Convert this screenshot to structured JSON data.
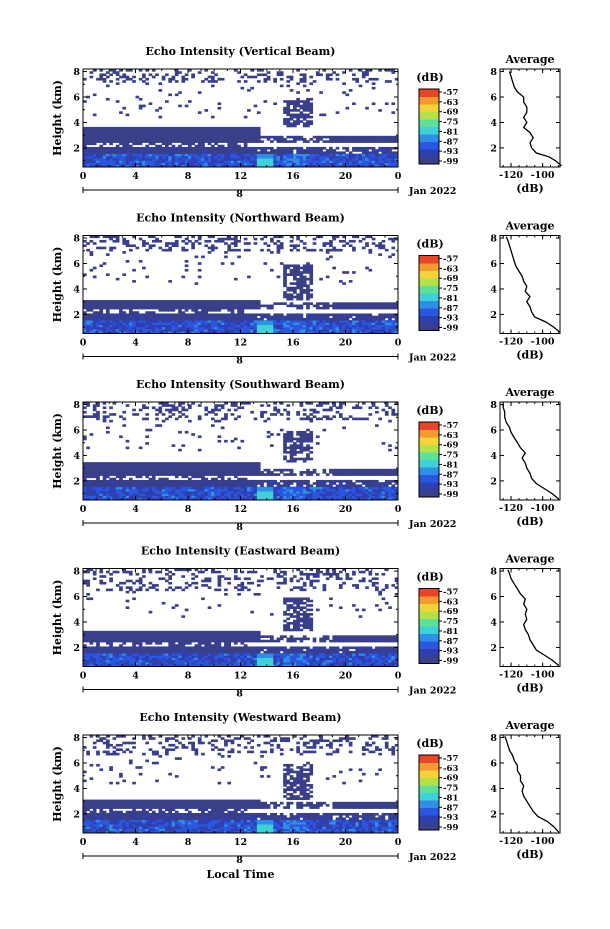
{
  "figure": {
    "xlabel": "Local Time",
    "date_label": "Jan 2022",
    "day_label": "8",
    "colorbar_unit": "(dB)",
    "colorbar_ticks": [
      "-57",
      "-63",
      "-69",
      "-75",
      "-81",
      "-87",
      "-93",
      "-99"
    ],
    "colormap_colors": [
      "#3a3f8a",
      "#2f3fb0",
      "#2a56e0",
      "#2f8fe6",
      "#3fd0d8",
      "#5fe09a",
      "#b4e04a",
      "#f2d33a",
      "#f49a2f",
      "#e8452a"
    ],
    "background_color": "#ffffff"
  },
  "chart_data": [
    {
      "type": "heatmap",
      "title": "Echo Intensity (Vertical Beam)",
      "ylabel": "Height (km)",
      "xlabel": "",
      "x_ticks": [
        "0",
        "4",
        "8",
        "12",
        "16",
        "20",
        "0"
      ],
      "y_ticks": [
        "2",
        "4",
        "6",
        "8"
      ],
      "xlim": [
        0,
        24
      ],
      "ylim": [
        0.5,
        8.2
      ],
      "clim": [
        -99,
        -57
      ],
      "features": {
        "low_echo_top_km": 3.6,
        "upper_echo_km": [
          7.2,
          8.2
        ],
        "strong_echo_time_h": 13.8,
        "storm_time_range_h": [
          15.2,
          17.0
        ]
      },
      "profile": {
        "title": "Average",
        "xlabel": "(dB)",
        "x_ticks": [
          "-120",
          "-100"
        ],
        "y_ticks": [
          "2",
          "4",
          "6",
          "8"
        ],
        "xlim": [
          -127,
          -89
        ],
        "ylim": [
          0.5,
          8.2
        ],
        "points": [
          [
            -88,
            0.6
          ],
          [
            -92,
            1.0
          ],
          [
            -96,
            1.3
          ],
          [
            -104,
            1.6
          ],
          [
            -107,
            2.0
          ],
          [
            -108,
            2.4
          ],
          [
            -106,
            2.8
          ],
          [
            -108,
            3.2
          ],
          [
            -112,
            3.6
          ],
          [
            -110,
            4.0
          ],
          [
            -112,
            4.4
          ],
          [
            -110,
            4.8
          ],
          [
            -110,
            5.2
          ],
          [
            -112,
            5.6
          ],
          [
            -112,
            6.0
          ],
          [
            -116,
            6.4
          ],
          [
            -118,
            6.8
          ],
          [
            -119,
            7.2
          ],
          [
            -120,
            7.6
          ],
          [
            -121,
            8.0
          ]
        ]
      }
    },
    {
      "type": "heatmap",
      "title": "Echo Intensity (Northward Beam)",
      "ylabel": "Height (km)",
      "xlabel": "",
      "x_ticks": [
        "0",
        "4",
        "8",
        "12",
        "16",
        "20",
        "0"
      ],
      "y_ticks": [
        "2",
        "4",
        "6",
        "8"
      ],
      "xlim": [
        0,
        24
      ],
      "ylim": [
        0.5,
        8.2
      ],
      "clim": [
        -99,
        -57
      ],
      "features": {
        "low_echo_top_km": 3.2,
        "upper_echo_km": [
          7.0,
          8.2
        ],
        "strong_echo_time_h": 13.8,
        "storm_time_range_h": [
          15.2,
          17.0
        ]
      },
      "profile": {
        "title": "Average",
        "xlabel": "(dB)",
        "x_ticks": [
          "-120",
          "-100"
        ],
        "y_ticks": [
          "2",
          "4",
          "6",
          "8"
        ],
        "xlim": [
          -127,
          -89
        ],
        "ylim": [
          0.5,
          8.2
        ],
        "points": [
          [
            -89,
            0.6
          ],
          [
            -93,
            1.0
          ],
          [
            -98,
            1.4
          ],
          [
            -105,
            1.8
          ],
          [
            -107,
            2.2
          ],
          [
            -108,
            2.6
          ],
          [
            -110,
            3.0
          ],
          [
            -108,
            3.4
          ],
          [
            -111,
            3.8
          ],
          [
            -110,
            4.2
          ],
          [
            -112,
            4.6
          ],
          [
            -113,
            5.0
          ],
          [
            -115,
            5.4
          ],
          [
            -117,
            5.8
          ],
          [
            -118,
            6.2
          ],
          [
            -119,
            6.6
          ],
          [
            -120,
            7.0
          ],
          [
            -121,
            7.4
          ],
          [
            -122,
            7.8
          ],
          [
            -123,
            8.1
          ]
        ]
      }
    },
    {
      "type": "heatmap",
      "title": "Echo Intensity (Southward Beam)",
      "ylabel": "Height (km)",
      "xlabel": "",
      "x_ticks": [
        "0",
        "4",
        "8",
        "12",
        "16",
        "20",
        "0"
      ],
      "y_ticks": [
        "2",
        "4",
        "6",
        "8"
      ],
      "xlim": [
        0,
        24
      ],
      "ylim": [
        0.5,
        8.2
      ],
      "clim": [
        -99,
        -57
      ],
      "features": {
        "low_echo_top_km": 3.4,
        "upper_echo_km": [
          6.8,
          8.2
        ],
        "strong_echo_time_h": 13.8,
        "storm_time_range_h": [
          15.2,
          17.0
        ]
      },
      "profile": {
        "title": "Average",
        "xlabel": "(dB)",
        "x_ticks": [
          "-120",
          "-100"
        ],
        "y_ticks": [
          "2",
          "4",
          "6",
          "8"
        ],
        "xlim": [
          -127,
          -89
        ],
        "ylim": [
          0.5,
          8.2
        ],
        "points": [
          [
            -90,
            0.6
          ],
          [
            -94,
            1.0
          ],
          [
            -99,
            1.4
          ],
          [
            -104,
            1.8
          ],
          [
            -107,
            2.2
          ],
          [
            -108,
            2.6
          ],
          [
            -110,
            3.0
          ],
          [
            -111,
            3.4
          ],
          [
            -113,
            3.8
          ],
          [
            -111,
            4.2
          ],
          [
            -114,
            4.6
          ],
          [
            -116,
            5.0
          ],
          [
            -118,
            5.4
          ],
          [
            -120,
            5.8
          ],
          [
            -121,
            6.2
          ],
          [
            -123,
            6.6
          ],
          [
            -124,
            7.0
          ],
          [
            -124,
            7.4
          ],
          [
            -125,
            7.8
          ],
          [
            -125,
            8.1
          ]
        ]
      }
    },
    {
      "type": "heatmap",
      "title": "Echo Intensity (Eastward Beam)",
      "ylabel": "Height (km)",
      "xlabel": "",
      "x_ticks": [
        "0",
        "4",
        "8",
        "12",
        "16",
        "20",
        "0"
      ],
      "y_ticks": [
        "2",
        "4",
        "6",
        "8"
      ],
      "xlim": [
        0,
        24
      ],
      "ylim": [
        0.5,
        8.2
      ],
      "clim": [
        -99,
        -57
      ],
      "features": {
        "low_echo_top_km": 3.3,
        "upper_echo_km": [
          6.5,
          8.2
        ],
        "strong_echo_time_h": 13.8,
        "storm_time_range_h": [
          15.2,
          17.0
        ]
      },
      "profile": {
        "title": "Average",
        "xlabel": "(dB)",
        "x_ticks": [
          "-120",
          "-100"
        ],
        "y_ticks": [
          "2",
          "4",
          "6",
          "8"
        ],
        "xlim": [
          -127,
          -89
        ],
        "ylim": [
          0.5,
          8.2
        ],
        "points": [
          [
            -90,
            0.6
          ],
          [
            -94,
            1.0
          ],
          [
            -99,
            1.4
          ],
          [
            -104,
            1.8
          ],
          [
            -106,
            2.2
          ],
          [
            -108,
            2.6
          ],
          [
            -109,
            3.0
          ],
          [
            -111,
            3.4
          ],
          [
            -112,
            3.8
          ],
          [
            -110,
            4.2
          ],
          [
            -111,
            4.6
          ],
          [
            -110,
            5.0
          ],
          [
            -112,
            5.4
          ],
          [
            -111,
            5.8
          ],
          [
            -114,
            6.2
          ],
          [
            -116,
            6.6
          ],
          [
            -118,
            7.0
          ],
          [
            -120,
            7.4
          ],
          [
            -121,
            7.8
          ],
          [
            -122,
            8.1
          ]
        ]
      }
    },
    {
      "type": "heatmap",
      "title": "Echo Intensity (Westward Beam)",
      "ylabel": "Height (km)",
      "xlabel": "Local Time",
      "x_ticks": [
        "0",
        "4",
        "8",
        "12",
        "16",
        "20",
        "0"
      ],
      "y_ticks": [
        "2",
        "4",
        "6",
        "8"
      ],
      "xlim": [
        0,
        24
      ],
      "ylim": [
        0.5,
        8.2
      ],
      "clim": [
        -99,
        -57
      ],
      "features": {
        "low_echo_top_km": 3.1,
        "upper_echo_km": [
          6.6,
          8.2
        ],
        "strong_echo_time_h": 13.8,
        "storm_time_range_h": [
          15.2,
          17.0
        ]
      },
      "profile": {
        "title": "Average",
        "xlabel": "(dB)",
        "x_ticks": [
          "-120",
          "-100"
        ],
        "y_ticks": [
          "2",
          "4",
          "6",
          "8"
        ],
        "xlim": [
          -127,
          -89
        ],
        "ylim": [
          0.5,
          8.2
        ],
        "points": [
          [
            -90,
            0.6
          ],
          [
            -93,
            1.0
          ],
          [
            -97,
            1.4
          ],
          [
            -103,
            1.8
          ],
          [
            -106,
            2.2
          ],
          [
            -108,
            2.6
          ],
          [
            -110,
            3.0
          ],
          [
            -112,
            3.4
          ],
          [
            -113,
            3.8
          ],
          [
            -112,
            4.2
          ],
          [
            -114,
            4.6
          ],
          [
            -114,
            5.0
          ],
          [
            -116,
            5.4
          ],
          [
            -116,
            5.8
          ],
          [
            -118,
            6.2
          ],
          [
            -119,
            6.6
          ],
          [
            -121,
            7.0
          ],
          [
            -122,
            7.4
          ],
          [
            -123,
            7.8
          ],
          [
            -124,
            8.1
          ]
        ]
      }
    }
  ]
}
